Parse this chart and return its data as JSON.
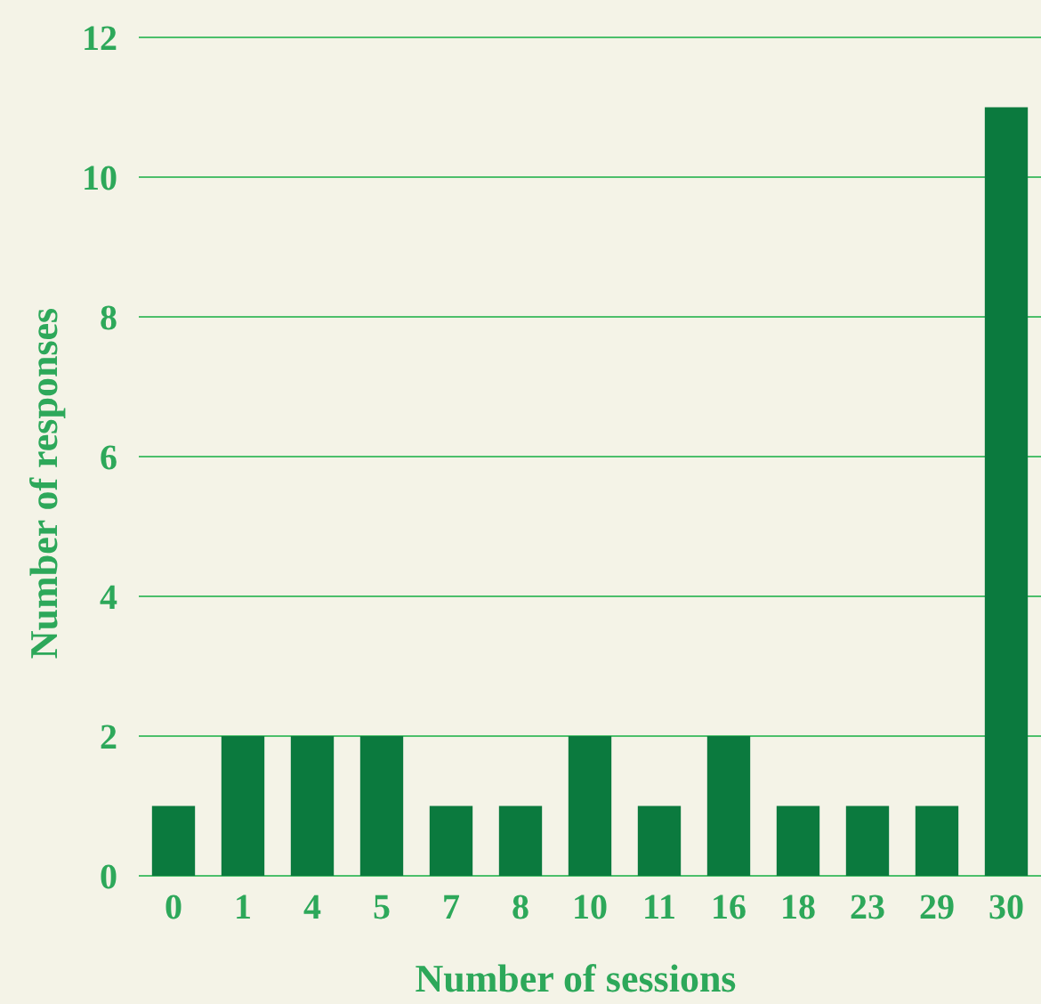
{
  "chart_data": {
    "type": "bar",
    "xlabel": "Number of sessions",
    "ylabel": "Number of responses",
    "categories": [
      "0",
      "1",
      "4",
      "5",
      "7",
      "8",
      "10",
      "11",
      "16",
      "18",
      "23",
      "29",
      "30"
    ],
    "values": [
      1,
      2,
      2,
      2,
      1,
      1,
      2,
      1,
      2,
      1,
      1,
      1,
      11
    ],
    "color": "#0b7a3e",
    "ylim": [
      0,
      12
    ],
    "yticks": [
      0,
      2,
      4,
      6,
      8,
      10,
      12
    ],
    "grid": "y"
  }
}
